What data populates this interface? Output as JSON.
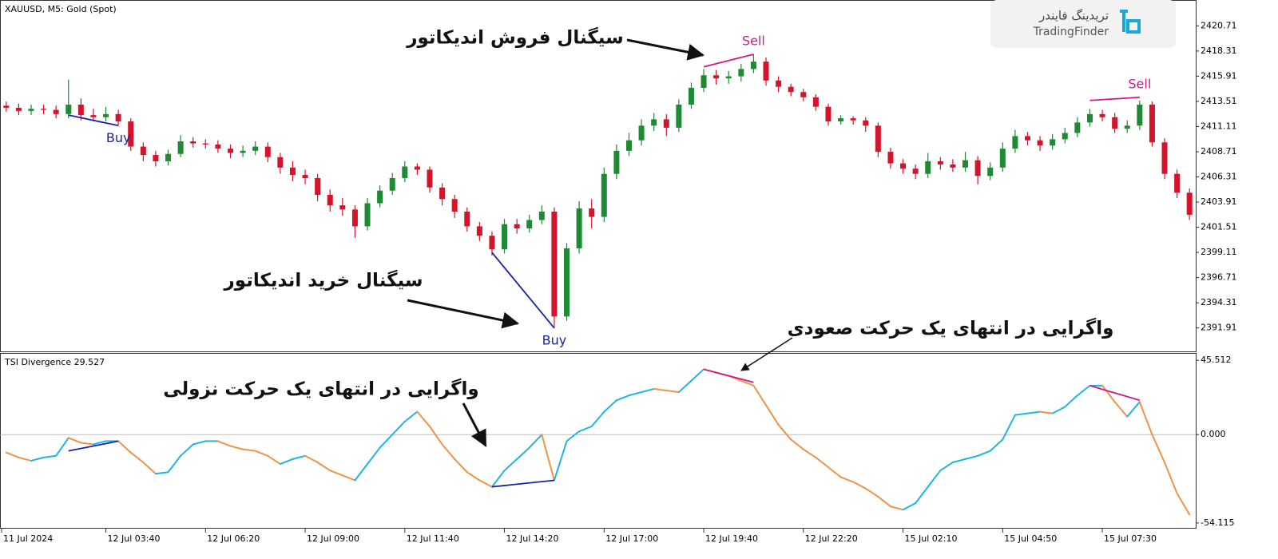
{
  "chart_data": [
    {
      "type": "candlestick",
      "title": "XAUUSD, M5:  Gold (Spot)",
      "up_color": "#1e8a34",
      "down_color": "#d3142a",
      "open": [
        2413.1,
        2412.9,
        2412.6,
        2412.8,
        2412.7,
        2412.3,
        2413.2,
        2412.2,
        2412.0,
        2412.3,
        2411.6,
        2409.2,
        2408.4,
        2407.8,
        2408.5,
        2409.7,
        2409.5,
        2409.4,
        2409.0,
        2408.6,
        2408.8,
        2409.2,
        2408.2,
        2407.2,
        2406.5,
        2406.2,
        2404.6,
        2403.6,
        2403.2,
        2401.6,
        2403.8,
        2405.0,
        2406.2,
        2407.3,
        2407.0,
        2405.3,
        2404.2,
        2403.0,
        2401.6,
        2400.7,
        2399.4,
        2401.8,
        2401.4,
        2402.2,
        2403.0,
        2393.0,
        2399.5,
        2403.3,
        2402.5,
        2406.6,
        2408.8,
        2409.8,
        2411.2,
        2411.8,
        2411.0,
        2413.2,
        2414.8,
        2416.0,
        2415.7,
        2415.9,
        2416.6,
        2417.3,
        2415.5,
        2414.9,
        2414.4,
        2413.9,
        2413.0,
        2411.6,
        2411.9,
        2411.7,
        2411.2,
        2408.7,
        2407.6,
        2407.1,
        2406.6,
        2407.8,
        2407.5,
        2407.2,
        2407.9,
        2406.4,
        2407.2,
        2409.0,
        2410.2,
        2409.8,
        2409.3,
        2409.9,
        2410.5,
        2411.5,
        2412.3,
        2412.0,
        2410.9,
        2411.2,
        2413.2,
        2409.6,
        2406.6,
        2404.8
      ],
      "high": [
        2413.5,
        2413.3,
        2413.2,
        2413.2,
        2413.1,
        2415.6,
        2413.8,
        2412.8,
        2413.0,
        2412.7,
        2411.9,
        2409.6,
        2408.8,
        2408.9,
        2410.3,
        2410.1,
        2409.9,
        2409.8,
        2409.4,
        2409.3,
        2409.7,
        2409.6,
        2408.6,
        2407.8,
        2407.0,
        2406.6,
        2405.1,
        2404.3,
        2403.6,
        2404.3,
        2405.5,
        2406.7,
        2407.8,
        2407.6,
        2407.3,
        2405.7,
        2404.6,
        2403.4,
        2402.0,
        2401.1,
        2402.3,
        2402.3,
        2402.7,
        2403.6,
        2403.4,
        2400.0,
        2404.0,
        2404.2,
        2407.2,
        2409.4,
        2410.5,
        2411.8,
        2412.4,
        2412.3,
        2413.7,
        2415.3,
        2416.6,
        2416.5,
        2416.4,
        2417.1,
        2418.0,
        2417.7,
        2415.9,
        2415.2,
        2414.7,
        2414.2,
        2413.3,
        2412.2,
        2412.1,
        2412.0,
        2411.5,
        2409.1,
        2408.0,
        2407.5,
        2408.6,
        2408.2,
        2408.0,
        2408.7,
        2408.3,
        2407.7,
        2409.6,
        2410.8,
        2410.6,
        2410.2,
        2410.4,
        2411.0,
        2412.0,
        2412.8,
        2412.7,
        2412.4,
        2411.7,
        2413.6,
        2413.5,
        2410.0,
        2407.0,
        2405.2
      ],
      "low": [
        2412.5,
        2412.2,
        2412.2,
        2412.3,
        2411.9,
        2411.9,
        2411.7,
        2411.6,
        2411.6,
        2411.2,
        2408.8,
        2407.8,
        2407.3,
        2407.4,
        2408.2,
        2409.1,
        2409.0,
        2408.6,
        2408.1,
        2408.2,
        2408.4,
        2407.7,
        2406.6,
        2405.9,
        2405.6,
        2404.0,
        2403.0,
        2402.6,
        2400.5,
        2401.2,
        2403.4,
        2404.6,
        2405.8,
        2406.5,
        2404.8,
        2403.6,
        2402.4,
        2401.1,
        2400.2,
        2398.8,
        2399.0,
        2400.9,
        2401.0,
        2401.8,
        2391.9,
        2392.6,
        2399.0,
        2401.4,
        2402.0,
        2406.1,
        2408.3,
        2409.3,
        2410.7,
        2410.2,
        2410.6,
        2412.8,
        2414.4,
        2415.1,
        2415.2,
        2415.4,
        2416.2,
        2415.0,
        2414.4,
        2414.0,
        2413.5,
        2412.6,
        2411.2,
        2411.3,
        2411.3,
        2410.6,
        2408.2,
        2407.1,
        2406.6,
        2406.1,
        2406.2,
        2407.0,
        2406.8,
        2406.8,
        2405.6,
        2406.0,
        2406.8,
        2408.6,
        2409.3,
        2408.8,
        2408.9,
        2409.5,
        2410.1,
        2411.1,
        2411.6,
        2410.5,
        2410.5,
        2410.8,
        2409.2,
        2406.1,
        2404.3,
        2402.2
      ],
      "close": [
        2412.9,
        2412.6,
        2412.8,
        2412.7,
        2412.3,
        2413.2,
        2412.2,
        2412.0,
        2412.3,
        2411.6,
        2409.2,
        2408.4,
        2407.8,
        2408.5,
        2409.7,
        2409.5,
        2409.4,
        2409.0,
        2408.6,
        2408.8,
        2409.2,
        2408.2,
        2407.2,
        2406.5,
        2406.2,
        2404.6,
        2403.6,
        2403.2,
        2401.6,
        2403.8,
        2405.0,
        2406.2,
        2407.3,
        2407.0,
        2405.3,
        2404.2,
        2403.0,
        2401.6,
        2400.7,
        2399.4,
        2401.8,
        2401.4,
        2402.2,
        2403.0,
        2393.0,
        2399.5,
        2403.3,
        2402.5,
        2406.6,
        2408.8,
        2409.8,
        2411.2,
        2411.8,
        2411.0,
        2413.2,
        2414.8,
        2416.0,
        2415.7,
        2415.9,
        2416.6,
        2417.3,
        2415.5,
        2414.9,
        2414.4,
        2413.9,
        2413.0,
        2411.6,
        2411.9,
        2411.7,
        2411.2,
        2408.7,
        2407.6,
        2407.1,
        2406.6,
        2407.8,
        2407.5,
        2407.2,
        2407.9,
        2406.4,
        2407.2,
        2409.0,
        2410.2,
        2409.8,
        2409.3,
        2409.9,
        2410.5,
        2411.5,
        2412.3,
        2412.0,
        2410.9,
        2411.2,
        2413.2,
        2409.6,
        2406.6,
        2404.8,
        2402.7
      ],
      "ylim": [
        2389.6,
        2423.1
      ],
      "yticks": [
        2420.71,
        2418.31,
        2415.91,
        2413.51,
        2411.11,
        2408.71,
        2406.31,
        2403.91,
        2401.51,
        2399.11,
        2396.71,
        2394.31,
        2391.91
      ],
      "x_labels": [
        "11 Jul 2024",
        "12 Jul 03:40",
        "12 Jul 06:20",
        "12 Jul 09:00",
        "12 Jul 11:40",
        "12 Jul 14:20",
        "12 Jul 17:00",
        "12 Jul 19:40",
        "12 Jul 22:20",
        "15 Jul 02:10",
        "15 Jul 04:50",
        "15 Jul 07:30"
      ],
      "divergences": [
        {
          "label": "Buy",
          "color": "#1a22a8",
          "position": "below",
          "start": 5,
          "end": 9,
          "price": [
            2412.2,
            2411.2
          ],
          "tsi": [
            -10,
            -4
          ]
        },
        {
          "label": "Buy",
          "color": "#1a22a8",
          "position": "below",
          "start": 39,
          "end": 44,
          "price": [
            2399.1,
            2391.9
          ],
          "tsi": [
            -32,
            -28
          ]
        },
        {
          "label": "Sell",
          "color": "#cc1a8e",
          "position": "above",
          "start": 56,
          "end": 60,
          "price": [
            2416.8,
            2418.0
          ],
          "tsi": [
            40,
            32
          ]
        },
        {
          "label": "Sell",
          "color": "#cc1a8e",
          "position": "above",
          "start": 87,
          "end": 91,
          "price": [
            2413.6,
            2413.9
          ],
          "tsi": [
            30,
            21
          ]
        }
      ]
    },
    {
      "type": "line",
      "title": "TSI Divergence 29.527",
      "rise_color": "#1eb6e0",
      "fall_color": "#ef9347",
      "values": [
        -11,
        -14,
        -16,
        -14,
        -13,
        -2,
        -5,
        -6,
        -4,
        -4,
        -11,
        -17,
        -24,
        -23,
        -13,
        -6,
        -4,
        -4,
        -7,
        -9,
        -10,
        -13,
        -18,
        -15,
        -13,
        -17,
        -22,
        -25,
        -28,
        -18,
        -8,
        0,
        8,
        14,
        5,
        -6,
        -15,
        -23,
        -28,
        -32,
        -22,
        -15,
        -8,
        0,
        -28,
        -4,
        2,
        5,
        14,
        21,
        24,
        26,
        28,
        27,
        26,
        33,
        40,
        38,
        36,
        33,
        30,
        18,
        6,
        -3,
        -9,
        -14,
        -20,
        -26,
        -29,
        -33,
        -38,
        -44,
        -46,
        -42,
        -32,
        -22,
        -17,
        -15,
        -13,
        -10,
        -3,
        12,
        13,
        14,
        13,
        17,
        24,
        30,
        30,
        20,
        11,
        20,
        0,
        -17,
        -36,
        -49
      ],
      "ylim": [
        -57.6,
        49.5
      ],
      "yticks": [
        45.512,
        {
          "value": 0,
          "label": "0.000"
        },
        -54.115
      ],
      "level": 0
    }
  ],
  "annotations": [
    {
      "text": "سیگنال فروش اندیکاتور"
    },
    {
      "text": "سیگنال خرید اندیکاتور"
    },
    {
      "text": "واگرایی در انتهای یک حرکت صعودی"
    },
    {
      "text": "واگرایی در انتهای یک حرکت نزولی"
    }
  ],
  "logo": {
    "name_fa": "تریدینگ فایندر",
    "name_en": "TradingFinder"
  }
}
